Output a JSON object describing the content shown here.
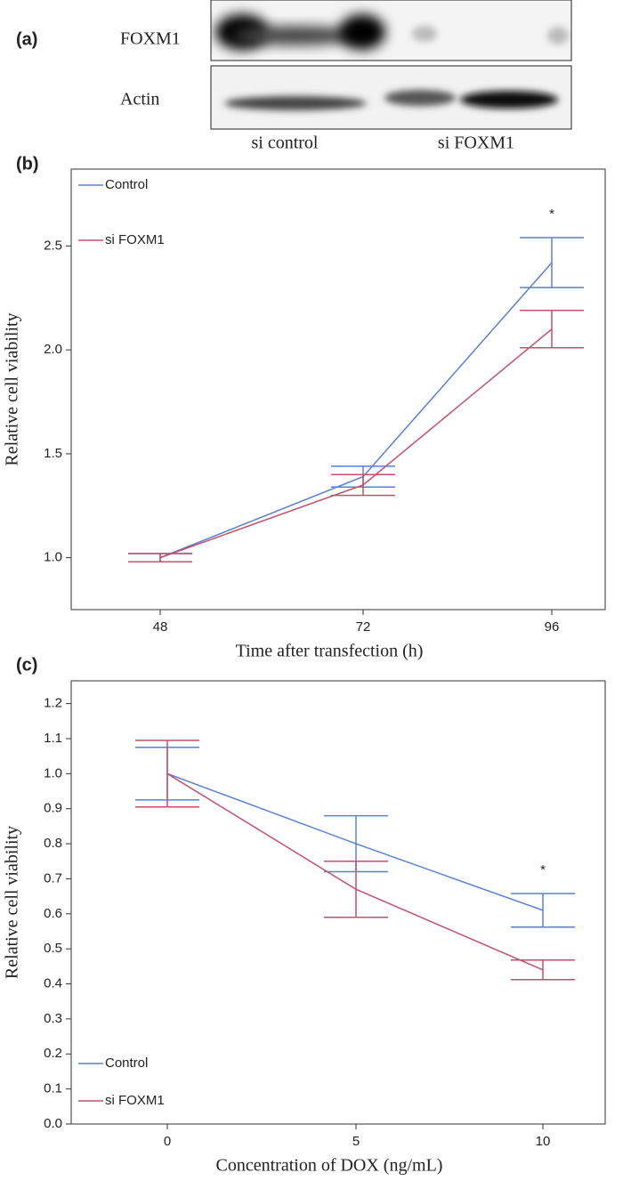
{
  "panel_a": {
    "label": "(a)",
    "rows": [
      "FOXM1",
      "Actin"
    ],
    "lanes": [
      "si control",
      "si FOXM1"
    ]
  },
  "chart_data": [
    {
      "type": "line",
      "panel_label": "(b)",
      "x_label": "Time after transfection (h)",
      "y_label": "Relative cell viability",
      "categories": [
        "48",
        "72",
        "96"
      ],
      "ylim": [
        0.75,
        2.87
      ],
      "yticks": [
        {
          "value": 1,
          "label": "1.0"
        },
        1.5,
        {
          "value": 2,
          "label": "2.0"
        },
        2.5
      ],
      "legend": "upper left",
      "series": [
        {
          "name": "Control",
          "color": "#5a7fd8",
          "values": [
            1.0,
            1.39,
            2.42
          ],
          "errors": [
            0.02,
            0.05,
            0.12
          ]
        },
        {
          "name": "si FOXM1",
          "color": "#c4506c",
          "values": [
            1.0,
            1.35,
            2.1
          ],
          "errors": [
            0.02,
            0.05,
            0.09
          ]
        }
      ],
      "annotations": [
        {
          "text": "*",
          "x": "96"
        }
      ]
    },
    {
      "type": "line",
      "panel_label": "(c)",
      "x_label": "Concentration of DOX (ng/mL)",
      "y_label": "Relative  cell viability",
      "categories": [
        "0",
        "5",
        "10"
      ],
      "ylim": [
        0,
        1.265
      ],
      "yticks": [
        {
          "value": 0,
          "label": "0.0"
        },
        0.1,
        0.2,
        0.3,
        0.4,
        0.5,
        0.6,
        0.7,
        0.8,
        0.9,
        {
          "value": 1,
          "label": "1.0"
        },
        1.1,
        1.2
      ],
      "legend": "lower left",
      "series": [
        {
          "name": "Control",
          "color": "#5a7fd8",
          "values": [
            1.0,
            0.8,
            0.61
          ],
          "errors": [
            0.075,
            0.08,
            0.048
          ]
        },
        {
          "name": "si FOXM1",
          "color": "#c4506c",
          "values": [
            1.0,
            0.67,
            0.44
          ],
          "errors": [
            0.095,
            0.08,
            0.028
          ]
        }
      ],
      "annotations": [
        {
          "text": "*",
          "x": "10"
        }
      ]
    }
  ]
}
